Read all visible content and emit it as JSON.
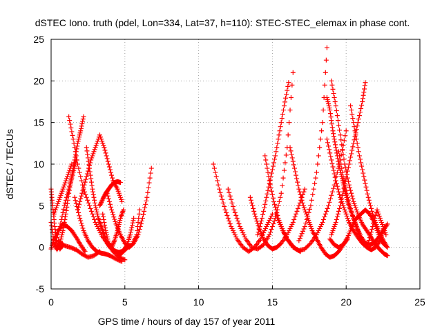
{
  "chart_data": {
    "type": "scatter",
    "title": "dSTEC Iono. truth (pdel, Lon=334, Lat=37, h=110): STEC-STEC_elemax in phase cont.",
    "xlabel": "GPS time / hours of day 157 of year 2011",
    "ylabel": "dSTEC  / TECUs",
    "xlim": [
      0,
      25
    ],
    "ylim": [
      -5,
      25
    ],
    "xticks": [
      0,
      5,
      10,
      15,
      20,
      25
    ],
    "yticks": [
      -5,
      0,
      5,
      10,
      15,
      20,
      25
    ],
    "grid": true,
    "marker": "plus",
    "color": "#ff0000",
    "arcs": [
      {
        "x": [
          0.0,
          0.1,
          0.25,
          0.4,
          0.6,
          0.8
        ],
        "y": [
          7.0,
          5.0,
          2.5,
          0.5,
          -0.2,
          0.3
        ]
      },
      {
        "x": [
          0.0,
          0.2,
          0.4,
          0.6,
          0.8,
          1.0,
          1.2,
          1.4,
          1.6,
          1.8,
          2.0,
          2.2
        ],
        "y": [
          3.0,
          0.5,
          -0.3,
          0.5,
          2.0,
          4.0,
          6.5,
          8.5,
          10.5,
          12.5,
          14.0,
          15.7
        ]
      },
      {
        "x": [
          0.0,
          0.2,
          0.5,
          0.8,
          1.1,
          1.4,
          1.7,
          2.0,
          2.3
        ],
        "y": [
          -0.2,
          1.0,
          2.0,
          2.8,
          2.5,
          2.0,
          1.2,
          0.3,
          -0.5
        ]
      },
      {
        "x": [
          0.2,
          0.5,
          0.8,
          1.1,
          1.4
        ],
        "y": [
          4.0,
          5.5,
          7.0,
          8.5,
          10.0
        ]
      },
      {
        "x": [
          0.3,
          0.6,
          0.9,
          1.2,
          1.5,
          1.7
        ],
        "y": [
          0.5,
          2.5,
          5.0,
          7.0,
          9.0,
          10.5
        ]
      },
      {
        "x": [
          0.5,
          0.9,
          1.3,
          1.7,
          2.1,
          2.5,
          2.9,
          3.3
        ],
        "y": [
          0.8,
          0.2,
          0.0,
          -0.3,
          -0.8,
          -1.2,
          -1.0,
          -0.5
        ]
      },
      {
        "x": [
          1.2,
          1.5,
          1.8,
          2.2,
          2.6,
          3.0,
          3.4,
          3.8,
          4.2,
          4.6,
          5.0
        ],
        "y": [
          15.7,
          13.0,
          10.0,
          7.0,
          5.0,
          3.0,
          1.5,
          0.5,
          -0.5,
          -1.2,
          -1.5
        ]
      },
      {
        "x": [
          1.6,
          1.9,
          2.2,
          2.5,
          2.8,
          3.1,
          3.4,
          3.7,
          4.0,
          4.4,
          4.8
        ],
        "y": [
          6.0,
          3.8,
          2.0,
          0.8,
          0.0,
          -0.5,
          -0.7,
          -0.8,
          -1.0,
          -1.4,
          -1.7
        ]
      },
      {
        "x": [
          1.8,
          2.1,
          2.4,
          2.7,
          3.0,
          3.3,
          3.6,
          3.9,
          4.2,
          4.5,
          4.8
        ],
        "y": [
          4.5,
          6.5,
          8.5,
          10.5,
          12.0,
          13.5,
          12.0,
          10.0,
          8.0,
          7.0,
          5.5
        ]
      },
      {
        "x": [
          2.4,
          2.6,
          2.8,
          3.0,
          3.2,
          3.4,
          3.6,
          3.8,
          4.0,
          4.2,
          4.4,
          4.6,
          4.8,
          5.0,
          5.2,
          5.4,
          5.6
        ],
        "y": [
          12.0,
          9.5,
          7.0,
          5.0,
          3.5,
          2.5,
          1.5,
          0.5,
          0.0,
          -0.3,
          -0.5,
          -0.6,
          -0.5,
          -0.2,
          0.5,
          1.8,
          3.5
        ]
      },
      {
        "x": [
          3.3,
          3.5,
          3.7,
          3.9,
          4.1,
          4.3,
          4.5,
          4.7
        ],
        "y": [
          5.0,
          5.8,
          6.5,
          7.0,
          7.5,
          7.8,
          7.9,
          7.8
        ]
      },
      {
        "x": [
          3.5,
          3.7,
          3.9,
          4.1,
          4.3,
          4.5,
          4.7,
          4.9
        ],
        "y": [
          4.0,
          2.0,
          0.5,
          0.0,
          0.8,
          2.0,
          3.5,
          4.5
        ]
      },
      {
        "x": [
          3.8,
          4.1,
          4.4,
          4.7,
          5.0,
          5.3,
          5.6,
          5.9,
          6.2,
          6.5,
          6.8
        ],
        "y": [
          6.5,
          4.5,
          2.8,
          1.5,
          0.5,
          0.0,
          0.5,
          1.5,
          3.5,
          6.0,
          9.5
        ]
      },
      {
        "x": [
          4.6,
          4.9,
          5.2,
          5.5,
          5.8,
          6.0
        ],
        "y": [
          -1.0,
          -0.5,
          0.0,
          0.3,
          1.5,
          4.5
        ]
      },
      {
        "x": [
          11.0,
          11.4,
          11.8,
          12.2,
          12.6,
          13.0,
          13.4,
          13.8,
          14.2,
          14.6,
          15.0
        ],
        "y": [
          10.0,
          7.0,
          4.5,
          2.5,
          1.0,
          0.0,
          -0.5,
          0.0,
          1.0,
          2.5,
          4.0
        ]
      },
      {
        "x": [
          12.0,
          12.4,
          12.8,
          13.2,
          13.6,
          14.0,
          14.4,
          14.8,
          15.2,
          15.6,
          16.0,
          16.4
        ],
        "y": [
          7.0,
          4.5,
          2.5,
          1.0,
          0.0,
          -0.2,
          0.3,
          1.5,
          3.5,
          6.5,
          12.0,
          21.0
        ]
      },
      {
        "x": [
          13.5,
          13.8,
          14.1,
          14.4,
          14.7,
          15.0,
          15.3,
          15.6,
          16.0,
          16.4,
          16.8,
          17.2
        ],
        "y": [
          6.0,
          4.0,
          2.3,
          1.0,
          0.2,
          -0.2,
          0.0,
          0.5,
          1.5,
          3.0,
          5.0,
          7.0
        ]
      },
      {
        "x": [
          14.0,
          14.3,
          14.6,
          14.9,
          15.2,
          15.5,
          15.8,
          16.1
        ],
        "y": [
          1.5,
          3.5,
          6.0,
          8.5,
          11.0,
          14.0,
          17.0,
          19.8
        ]
      },
      {
        "x": [
          14.5,
          14.8,
          15.1,
          15.4,
          15.7,
          16.0,
          16.3,
          16.6,
          16.9
        ],
        "y": [
          11.0,
          8.0,
          5.5,
          3.5,
          2.0,
          1.0,
          0.3,
          -0.2,
          -0.5
        ]
      },
      {
        "x": [
          15.2,
          15.6,
          16.0,
          16.4,
          16.8,
          17.2,
          17.6,
          18.0,
          18.4,
          18.8,
          19.2,
          19.6,
          20.0
        ],
        "y": [
          4.0,
          2.5,
          1.0,
          0.0,
          -0.4,
          -0.2,
          0.5,
          1.5,
          3.0,
          5.0,
          7.5,
          10.5,
          14.0
        ]
      },
      {
        "x": [
          16.2,
          16.5,
          16.8,
          17.1,
          17.4,
          17.7,
          18.0,
          18.3,
          18.6,
          18.9,
          19.2,
          19.5,
          19.8,
          20.1
        ],
        "y": [
          12.0,
          9.5,
          7.0,
          5.0,
          3.5,
          2.0,
          1.0,
          0.0,
          -0.8,
          -1.2,
          -1.0,
          -0.5,
          0.3,
          1.0
        ]
      },
      {
        "x": [
          16.8,
          17.2,
          17.6,
          18.0,
          18.4,
          18.7
        ],
        "y": [
          0.8,
          2.5,
          5.0,
          9.0,
          15.0,
          24.0
        ]
      },
      {
        "x": [
          18.7,
          18.9,
          19.1,
          19.3,
          19.5,
          19.7,
          19.9,
          20.1,
          20.3,
          20.5,
          20.7,
          20.9
        ],
        "y": [
          18.0,
          16.5,
          14.0,
          12.0,
          10.0,
          8.5,
          7.0,
          5.5,
          4.5,
          3.5,
          2.5,
          1.5
        ]
      },
      {
        "x": [
          19.0,
          19.3,
          19.6,
          19.9,
          20.2,
          20.5,
          20.8,
          21.1,
          21.4,
          21.7,
          22.0,
          22.3,
          22.6,
          22.8
        ],
        "y": [
          20.0,
          17.0,
          13.5,
          10.0,
          7.5,
          5.5,
          4.0,
          2.8,
          2.0,
          1.2,
          0.3,
          -0.3,
          -0.8,
          -1.0
        ]
      },
      {
        "x": [
          18.7,
          19.0,
          19.3,
          19.6,
          19.9,
          20.2,
          20.5,
          20.8,
          21.1,
          21.4,
          21.7,
          22.0,
          22.3,
          22.6
        ],
        "y": [
          13.0,
          10.5,
          8.0,
          6.0,
          4.5,
          3.0,
          2.0,
          1.2,
          0.5,
          0.0,
          -0.3,
          0.0,
          0.8,
          2.5
        ]
      },
      {
        "x": [
          19.5,
          19.8,
          20.1,
          20.4,
          20.7,
          21.0,
          21.3,
          21.6,
          21.9,
          22.2,
          22.5,
          22.8
        ],
        "y": [
          11.5,
          8.5,
          6.0,
          4.0,
          2.5,
          1.3,
          0.5,
          0.3,
          0.5,
          1.2,
          2.0,
          2.8
        ]
      },
      {
        "x": [
          19.0,
          19.3,
          19.6,
          19.9,
          20.2,
          20.5,
          20.8,
          21.1,
          21.3
        ],
        "y": [
          1.5,
          3.0,
          5.0,
          7.5,
          10.0,
          12.5,
          15.0,
          17.5,
          19.8
        ]
      },
      {
        "x": [
          20.3,
          20.6,
          20.9,
          21.2,
          21.5,
          21.8,
          22.1,
          22.4,
          22.7
        ],
        "y": [
          17.0,
          14.0,
          11.0,
          8.5,
          6.0,
          4.0,
          2.5,
          1.2,
          0.3
        ]
      },
      {
        "x": [
          18.9,
          19.2,
          19.5,
          19.8,
          20.1,
          20.4,
          20.7,
          21.0,
          21.3,
          21.6,
          21.9,
          22.2,
          22.5,
          22.8
        ],
        "y": [
          1.0,
          0.3,
          0.0,
          0.3,
          1.2,
          2.5,
          3.5,
          4.0,
          4.5,
          4.0,
          3.0,
          1.5,
          0.5,
          0.0
        ]
      },
      {
        "x": [
          21.5,
          21.8,
          22.1,
          22.4,
          22.7
        ],
        "y": [
          0.5,
          2.5,
          4.5,
          3.0,
          1.5
        ]
      }
    ]
  }
}
